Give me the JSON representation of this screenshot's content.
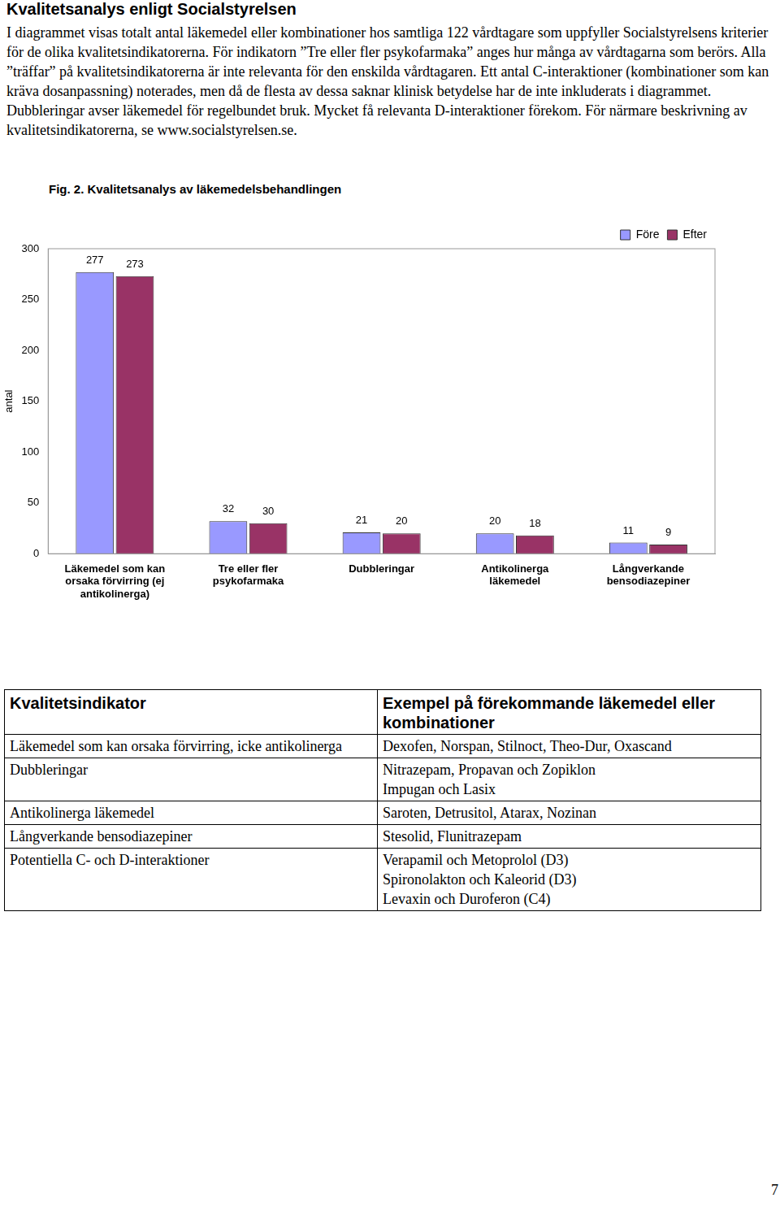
{
  "heading": "Kvalitetsanalys enligt Socialstyrelsen",
  "paragraph": "I diagrammet visas totalt antal läkemedel eller kombinationer hos samtliga 122 vårdtagare som uppfyller Socialstyrelsens kriterier för de olika kvalitetsindikatorerna. För  indikatorn ”Tre eller fler psykofarmaka” anges hur många av vårdtagarna som berörs. Alla ”träffar” på kvalitetsindikatorerna är inte relevanta för den enskilda vårdtagaren. Ett antal C-interaktioner (kombinationer som kan kräva dosanpassning) noterades, men då de flesta av dessa saknar klinisk betydelse har de inte inkluderats i diagrammet. Dubbleringar avser läkemedel för regelbundet bruk. Mycket få relevanta D-interaktioner förekom. För närmare beskrivning av kvalitetsindikatorerna, se www.socialstyrelsen.se.",
  "chart_data": {
    "type": "bar",
    "title": "Fig. 2. Kvalitetsanalys av läkemedelsbehandlingen",
    "y_label": "antal",
    "categories": [
      "Läkemedel som kan orsaka förvirring (ej antikolinerga)",
      "Tre eller fler psykofarmaka",
      "Dubbleringar",
      "Antikolinerga läkemedel",
      "Långverkande bensodiazepiner"
    ],
    "series": [
      {
        "name": "Före",
        "color": "#9999ff",
        "values": [
          277,
          32,
          21,
          20,
          11
        ]
      },
      {
        "name": "Efter",
        "color": "#993366",
        "values": [
          273,
          30,
          20,
          18,
          9
        ]
      }
    ],
    "ylim": [
      0,
      300
    ],
    "yticks": [
      0,
      50,
      100,
      150,
      200,
      250,
      300
    ],
    "grid": false,
    "legend": "upper right",
    "data_labels": true
  },
  "table": {
    "header": [
      "Kvalitetsindikator",
      "Exempel på förekommande läkemedel eller kombinationer"
    ],
    "rows": [
      [
        [
          "Läkemedel som kan orsaka förvirring, icke antikolinerga"
        ],
        [
          "Dexofen, Norspan, Stilnoct, Theo-Dur, Oxascand"
        ]
      ],
      [
        [
          "Dubbleringar"
        ],
        [
          "Nitrazepam, Propavan och Zopiklon",
          "Impugan och Lasix"
        ]
      ],
      [
        [
          "Antikolinerga läkemedel"
        ],
        [
          "Saroten, Detrusitol, Atarax, Nozinan"
        ]
      ],
      [
        [
          "Långverkande bensodiazepiner"
        ],
        [
          "Stesolid, Flunitrazepam"
        ]
      ],
      [
        [
          "Potentiella C- och D-interaktioner"
        ],
        [
          "Verapamil och Metoprolol (D3)",
          "Spironolakton och Kaleorid (D3)",
          "Levaxin och Duroferon (C4)"
        ]
      ]
    ]
  },
  "page_number": "7"
}
